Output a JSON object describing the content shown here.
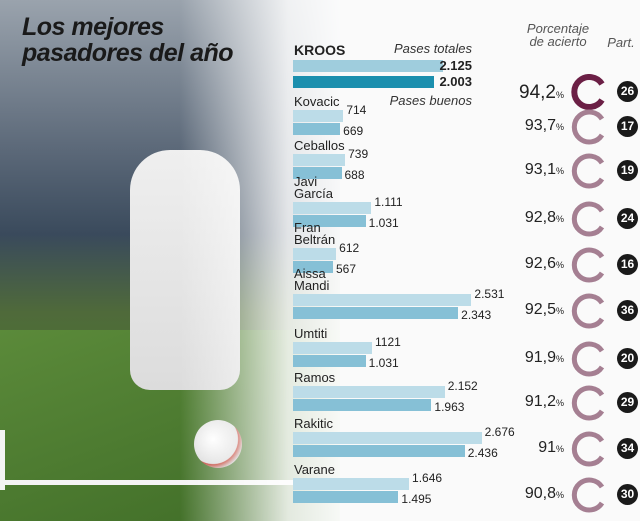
{
  "title": "Los mejores\npasadores del año",
  "headers": {
    "total": "Pases totales",
    "good": "Pases buenos",
    "pct": "Porcentaje\nde acierto",
    "matches": "Part."
  },
  "colors": {
    "total_bar": "#bcdce8",
    "good_bar": "#86c0d6",
    "kroos_good_bar": "#1b8fae",
    "donut_top": "#6b1f45",
    "donut": "#a57f92"
  },
  "chart_data": {
    "type": "bar",
    "orientation": "horizontal",
    "categories": [
      "KROOS",
      "Kovacic",
      "Ceballos",
      "Javi\nGarcía",
      "Fran\nBeltrán",
      "Aissa\nMandi",
      "Umtiti",
      "Ramos",
      "Rakitic",
      "Varane"
    ],
    "series": [
      {
        "name": "Pases totales",
        "values": [
          2125,
          714,
          739,
          1111,
          612,
          2531,
          1121,
          2152,
          2676,
          1646
        ],
        "labels": [
          "2.125",
          "714",
          "739",
          "1.111",
          "612",
          "2.531",
          "1121",
          "2.152",
          "2.676",
          "1.646"
        ]
      },
      {
        "name": "Pases buenos",
        "values": [
          2003,
          669,
          688,
          1031,
          567,
          2343,
          1031,
          1963,
          2436,
          1495
        ],
        "labels": [
          "2.003",
          "669",
          "688",
          "1.031",
          "567",
          "2.343",
          "1.031",
          "1.963",
          "2.436",
          "1.495"
        ]
      }
    ],
    "accuracy": [
      "94,2",
      "93,7",
      "93,1",
      "92,8",
      "92,6",
      "92,5",
      "91,9",
      "91,2",
      "91",
      "90,8"
    ],
    "matches": [
      "26",
      "17",
      "19",
      "24",
      "16",
      "36",
      "20",
      "29",
      "34",
      "30"
    ]
  }
}
